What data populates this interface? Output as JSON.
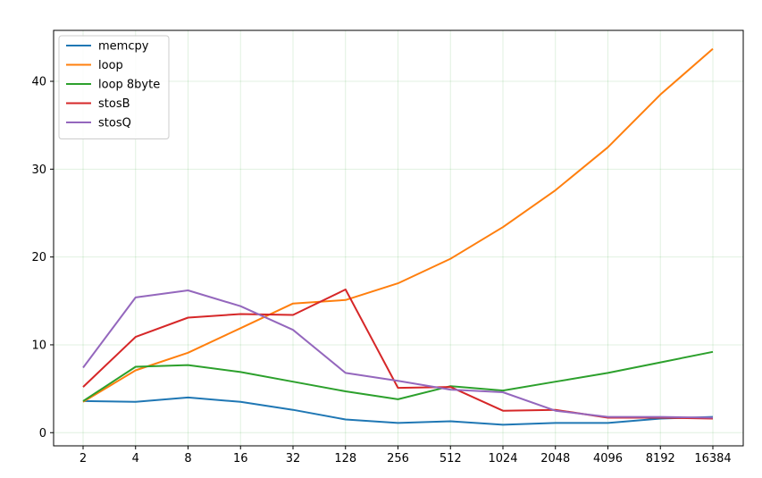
{
  "chart_data": {
    "type": "line",
    "title": "",
    "xlabel": "",
    "ylabel": "",
    "x_scale": "log2",
    "categories": [
      "2",
      "4",
      "8",
      "16",
      "32",
      "128",
      "256",
      "512",
      "1024",
      "2048",
      "4096",
      "8192",
      "16384"
    ],
    "ylim": [
      -1.5,
      45.8
    ],
    "yticks": [
      0,
      10,
      20,
      30,
      40
    ],
    "grid": true,
    "legend_position": "top-left",
    "series": [
      {
        "name": "memcpy",
        "color": "#1f77b4",
        "values": [
          3.6,
          3.5,
          4.0,
          3.5,
          2.6,
          1.5,
          1.1,
          1.3,
          0.9,
          1.1,
          1.1,
          1.6,
          1.8
        ]
      },
      {
        "name": "loop",
        "color": "#ff7f0e",
        "values": [
          3.5,
          7.1,
          9.1,
          11.9,
          14.7,
          15.1,
          17.0,
          19.8,
          23.4,
          27.6,
          32.5,
          38.5,
          43.7
        ]
      },
      {
        "name": "loop 8byte",
        "color": "#2ca02c",
        "values": [
          3.6,
          7.5,
          7.7,
          6.9,
          5.8,
          4.7,
          3.8,
          5.3,
          4.8,
          5.8,
          6.8,
          8.0,
          9.2
        ]
      },
      {
        "name": "stosB",
        "color": "#d62728",
        "values": [
          5.2,
          10.9,
          13.1,
          13.5,
          13.4,
          16.3,
          5.1,
          5.2,
          2.5,
          2.6,
          1.7,
          1.7,
          1.6
        ]
      },
      {
        "name": "stosQ",
        "color": "#9467bd",
        "values": [
          7.4,
          15.4,
          16.2,
          14.4,
          11.7,
          6.8,
          5.9,
          4.9,
          4.6,
          2.5,
          1.8,
          1.8,
          1.7
        ]
      }
    ]
  }
}
